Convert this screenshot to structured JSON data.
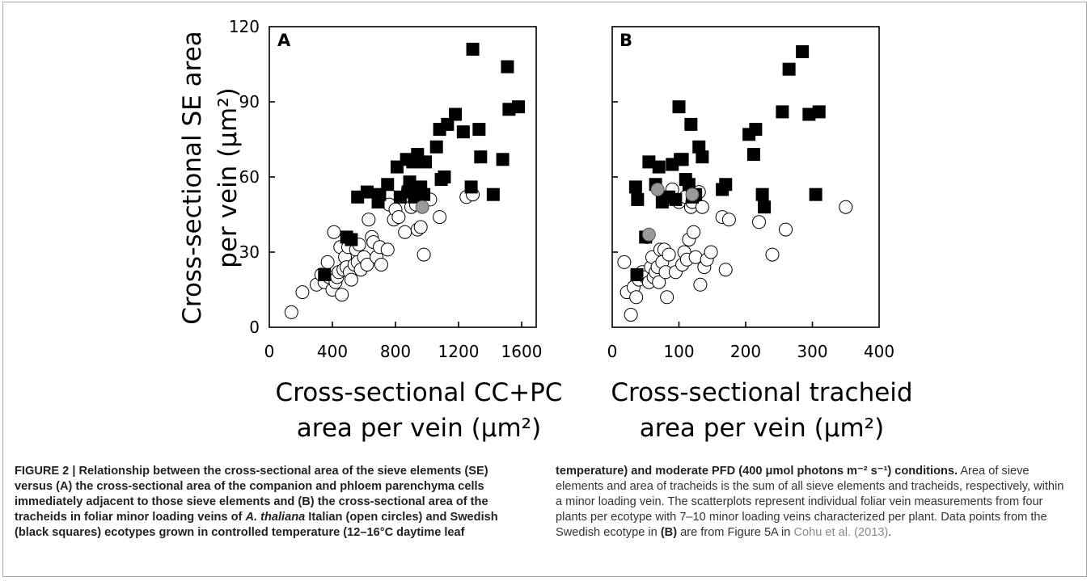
{
  "chart_data": [
    {
      "type": "scatter",
      "panel_label": "A",
      "xlabel": [
        "Cross-sectional CC+PC",
        "area per vein (μm²)"
      ],
      "ylabel": [
        "Cross-sectional SE area",
        "per vein (μm²)"
      ],
      "xlim": [
        0,
        1650
      ],
      "ylim": [
        0,
        120
      ],
      "xticks": [
        "0",
        "400",
        "800",
        "1200",
        "1600"
      ],
      "yticks": [
        "0",
        "30",
        "60",
        "90",
        "120"
      ],
      "legend": "none",
      "grid": false,
      "series": [
        {
          "marker": "open-circle",
          "points": [
            [
              140,
              6
            ],
            [
              210,
              14
            ],
            [
              300,
              17
            ],
            [
              330,
              21
            ],
            [
              350,
              18
            ],
            [
              370,
              26
            ],
            [
              380,
              20
            ],
            [
              400,
              15
            ],
            [
              410,
              38
            ],
            [
              420,
              18
            ],
            [
              430,
              20
            ],
            [
              440,
              22
            ],
            [
              450,
              32
            ],
            [
              460,
              13
            ],
            [
              470,
              23
            ],
            [
              480,
              28
            ],
            [
              490,
              24
            ],
            [
              500,
              32
            ],
            [
              510,
              22
            ],
            [
              520,
              19
            ],
            [
              540,
              25
            ],
            [
              550,
              31
            ],
            [
              560,
              26
            ],
            [
              570,
              33
            ],
            [
              580,
              23
            ],
            [
              600,
              28
            ],
            [
              620,
              25
            ],
            [
              630,
              43
            ],
            [
              650,
              36
            ],
            [
              660,
              34
            ],
            [
              680,
              28
            ],
            [
              700,
              32
            ],
            [
              710,
              25
            ],
            [
              750,
              31
            ],
            [
              760,
              49
            ],
            [
              790,
              43
            ],
            [
              800,
              47
            ],
            [
              820,
              44
            ],
            [
              860,
              38
            ],
            [
              880,
              55
            ],
            [
              900,
              48
            ],
            [
              930,
              49
            ],
            [
              940,
              39
            ],
            [
              960,
              40
            ],
            [
              980,
              29
            ],
            [
              1020,
              51
            ],
            [
              1080,
              44
            ],
            [
              1250,
              52
            ],
            [
              1290,
              53
            ]
          ]
        },
        {
          "marker": "filled-square",
          "points": [
            [
              350,
              21
            ],
            [
              490,
              36
            ],
            [
              520,
              35
            ],
            [
              560,
              52
            ],
            [
              620,
              54
            ],
            [
              690,
              50
            ],
            [
              700,
              53
            ],
            [
              750,
              57
            ],
            [
              810,
              64
            ],
            [
              830,
              52
            ],
            [
              870,
              67
            ],
            [
              880,
              54
            ],
            [
              890,
              58
            ],
            [
              910,
              66
            ],
            [
              920,
              52
            ],
            [
              940,
              69
            ],
            [
              960,
              56
            ],
            [
              980,
              53
            ],
            [
              990,
              66
            ],
            [
              1060,
              72
            ],
            [
              1080,
              79
            ],
            [
              1090,
              59
            ],
            [
              1110,
              60
            ],
            [
              1130,
              81
            ],
            [
              1180,
              85
            ],
            [
              1230,
              78
            ],
            [
              1280,
              56
            ],
            [
              1290,
              111
            ],
            [
              1330,
              79
            ],
            [
              1340,
              68
            ],
            [
              1420,
              53
            ],
            [
              1480,
              67
            ],
            [
              1510,
              104
            ],
            [
              1520,
              87
            ],
            [
              1580,
              88
            ]
          ]
        },
        {
          "marker": "grey-circle",
          "points": [
            [
              970,
              48
            ]
          ]
        }
      ]
    },
    {
      "type": "scatter",
      "panel_label": "B",
      "xlabel": [
        "Cross-sectional tracheid",
        "area per vein (μm²)"
      ],
      "ylabel": [],
      "xlim": [
        0,
        400
      ],
      "ylim": [
        0,
        120
      ],
      "xticks": [
        "0",
        "100",
        "200",
        "300",
        "400"
      ],
      "yticks": [],
      "legend": "none",
      "grid": false,
      "series": [
        {
          "marker": "open-circle",
          "points": [
            [
              18,
              26
            ],
            [
              22,
              14
            ],
            [
              28,
              5
            ],
            [
              32,
              16
            ],
            [
              36,
              12
            ],
            [
              40,
              19
            ],
            [
              45,
              22
            ],
            [
              50,
              20
            ],
            [
              52,
              36
            ],
            [
              55,
              18
            ],
            [
              58,
              24
            ],
            [
              60,
              28
            ],
            [
              62,
              20
            ],
            [
              65,
              22
            ],
            [
              68,
              24
            ],
            [
              70,
              18
            ],
            [
              72,
              31
            ],
            [
              75,
              26
            ],
            [
              78,
              31
            ],
            [
              80,
              22
            ],
            [
              82,
              12
            ],
            [
              85,
              29
            ],
            [
              90,
              55
            ],
            [
              95,
              22
            ],
            [
              100,
              50
            ],
            [
              105,
              25
            ],
            [
              108,
              30
            ],
            [
              110,
              52
            ],
            [
              112,
              27
            ],
            [
              115,
              35
            ],
            [
              118,
              48
            ],
            [
              120,
              50
            ],
            [
              122,
              38
            ],
            [
              125,
              28
            ],
            [
              130,
              54
            ],
            [
              132,
              17
            ],
            [
              135,
              48
            ],
            [
              138,
              24
            ],
            [
              142,
              27
            ],
            [
              148,
              30
            ],
            [
              165,
              44
            ],
            [
              170,
              23
            ],
            [
              175,
              43
            ],
            [
              220,
              42
            ],
            [
              240,
              29
            ],
            [
              260,
              39
            ],
            [
              350,
              48
            ]
          ]
        },
        {
          "marker": "filled-square",
          "points": [
            [
              35,
              56
            ],
            [
              37,
              21
            ],
            [
              38,
              51
            ],
            [
              50,
              36
            ],
            [
              55,
              66
            ],
            [
              65,
              57
            ],
            [
              70,
              64
            ],
            [
              75,
              50
            ],
            [
              80,
              52
            ],
            [
              85,
              52
            ],
            [
              90,
              65
            ],
            [
              95,
              51
            ],
            [
              100,
              88
            ],
            [
              102,
              67
            ],
            [
              105,
              67
            ],
            [
              110,
              59
            ],
            [
              115,
              57
            ],
            [
              118,
              81
            ],
            [
              120,
              52
            ],
            [
              125,
              53
            ],
            [
              130,
              72
            ],
            [
              135,
              68
            ],
            [
              165,
              55
            ],
            [
              170,
              57
            ],
            [
              205,
              77
            ],
            [
              212,
              69
            ],
            [
              215,
              79
            ],
            [
              225,
              53
            ],
            [
              228,
              48
            ],
            [
              255,
              86
            ],
            [
              265,
              103
            ],
            [
              285,
              110
            ],
            [
              295,
              85
            ],
            [
              305,
              53
            ],
            [
              310,
              86
            ]
          ]
        },
        {
          "marker": "grey-circle",
          "points": [
            [
              55,
              37
            ],
            [
              68,
              55
            ],
            [
              120,
              53
            ]
          ]
        }
      ]
    }
  ],
  "caption": {
    "left_bold_prefix": "FIGURE 2 | Relationship between the cross-sectional area of the sieve elements (SE) versus (A) the cross-sectional area of the companion and phloem parenchyma cells immediately adjacent to those sieve elements and (B) the cross-sectional area of the tracheids in foliar minor loading veins of ",
    "left_bold_italic": "A. thaliana",
    "left_bold_suffix": " Italian (open circles) and Swedish (black squares) ecotypes grown in controlled temperature (12–16°C daytime leaf",
    "right_bold": "temperature) and moderate PFD (400 μmol photons m⁻² s⁻¹) conditions.",
    "right_text_1": " Area of sieve elements and area of tracheids is the sum of all sieve elements and tracheids, respectively, within a minor loading vein. The scatterplots represent individual foliar vein measurements from four plants per ecotype with 7–10 minor loading veins characterized per plant. Data points from the Swedish ecotype in ",
    "right_bold_b": "(B)",
    "right_text_2": " are from Figure 5A in ",
    "right_link": "Cohu et al. (2013)",
    "right_text_3": "."
  }
}
